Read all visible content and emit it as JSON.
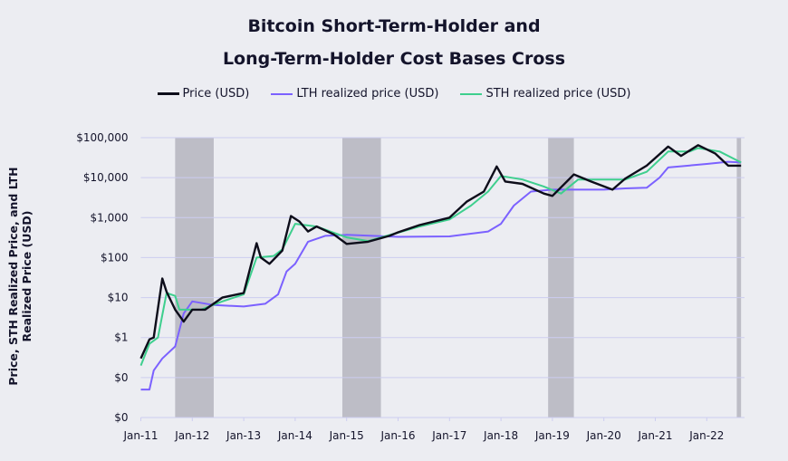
{
  "chart_data": {
    "type": "line",
    "title": "Bitcoin Short-Term-Holder and Long-Term-Holder Cost Bases Cross",
    "title_lines": [
      "Bitcoin Short-Term-Holder and",
      "Long-Term-Holder Cost Bases Cross"
    ],
    "ylabel": "Price, STH Realized Price, and LTH Realized Price (USD)",
    "xlabel": "",
    "y_scale": "log",
    "ylim": [
      0.01,
      100000
    ],
    "y_ticks": [
      {
        "value": 100000,
        "label": "$100,000"
      },
      {
        "value": 10000,
        "label": "$10,000"
      },
      {
        "value": 1000,
        "label": "$1,000"
      },
      {
        "value": 100,
        "label": "$100"
      },
      {
        "value": 10,
        "label": "$10"
      },
      {
        "value": 1,
        "label": "$1"
      },
      {
        "value": 0.1,
        "label": "$0"
      },
      {
        "value": 0.01,
        "label": "$0"
      }
    ],
    "xlim": [
      "2011-01",
      "2022-09"
    ],
    "x_ticks": [
      "Jan-11",
      "Jan-12",
      "Jan-13",
      "Jan-14",
      "Jan-15",
      "Jan-16",
      "Jan-17",
      "Jan-18",
      "Jan-19",
      "Jan-20",
      "Jan-21",
      "Jan-22"
    ],
    "grid": "horizontal",
    "legend_placement": "top",
    "shaded_periods": [
      [
        "2011-09",
        "2012-06"
      ],
      [
        "2014-12",
        "2015-09"
      ],
      [
        "2018-12",
        "2019-06"
      ],
      [
        "2022-08",
        "2022-09"
      ]
    ],
    "series": [
      {
        "name": "Price (USD)",
        "color": "#0d0d1a",
        "points": [
          [
            "2011-01",
            0.3
          ],
          [
            "2011-03",
            0.9
          ],
          [
            "2011-04",
            1
          ],
          [
            "2011-06",
            30
          ],
          [
            "2011-07",
            14
          ],
          [
            "2011-09",
            5
          ],
          [
            "2011-11",
            2.5
          ],
          [
            "2012-01",
            5
          ],
          [
            "2012-04",
            5
          ],
          [
            "2012-08",
            10
          ],
          [
            "2013-01",
            13
          ],
          [
            "2013-04",
            230
          ],
          [
            "2013-05",
            100
          ],
          [
            "2013-07",
            70
          ],
          [
            "2013-10",
            150
          ],
          [
            "2013-12",
            1100
          ],
          [
            "2014-02",
            800
          ],
          [
            "2014-04",
            450
          ],
          [
            "2014-06",
            600
          ],
          [
            "2014-10",
            380
          ],
          [
            "2015-01",
            220
          ],
          [
            "2015-06",
            250
          ],
          [
            "2015-11",
            350
          ],
          [
            "2016-01",
            430
          ],
          [
            "2016-06",
            650
          ],
          [
            "2017-01",
            1000
          ],
          [
            "2017-05",
            2500
          ],
          [
            "2017-09",
            4500
          ],
          [
            "2017-12",
            19000
          ],
          [
            "2018-02",
            8000
          ],
          [
            "2018-06",
            7000
          ],
          [
            "2018-11",
            4000
          ],
          [
            "2019-01",
            3500
          ],
          [
            "2019-06",
            12000
          ],
          [
            "2019-10",
            8000
          ],
          [
            "2020-03",
            5000
          ],
          [
            "2020-06",
            9500
          ],
          [
            "2020-11",
            20000
          ],
          [
            "2021-04",
            60000
          ],
          [
            "2021-07",
            35000
          ],
          [
            "2021-11",
            65000
          ],
          [
            "2022-03",
            40000
          ],
          [
            "2022-06",
            20000
          ],
          [
            "2022-09",
            20000
          ]
        ]
      },
      {
        "name": "LTH realized price (USD)",
        "color": "#7b61ff",
        "points": [
          [
            "2011-01",
            0.05
          ],
          [
            "2011-03",
            0.05
          ],
          [
            "2011-04",
            0.15
          ],
          [
            "2011-06",
            0.3
          ],
          [
            "2011-09",
            0.6
          ],
          [
            "2011-11",
            4
          ],
          [
            "2012-01",
            8
          ],
          [
            "2012-06",
            6.5
          ],
          [
            "2013-01",
            6
          ],
          [
            "2013-06",
            7
          ],
          [
            "2013-09",
            12
          ],
          [
            "2013-11",
            45
          ],
          [
            "2014-01",
            70
          ],
          [
            "2014-04",
            250
          ],
          [
            "2014-08",
            350
          ],
          [
            "2015-01",
            370
          ],
          [
            "2016-01",
            330
          ],
          [
            "2017-01",
            340
          ],
          [
            "2017-10",
            450
          ],
          [
            "2018-01",
            700
          ],
          [
            "2018-04",
            2000
          ],
          [
            "2018-08",
            4500
          ],
          [
            "2019-01",
            5000
          ],
          [
            "2020-01",
            5000
          ],
          [
            "2020-06",
            5400
          ],
          [
            "2020-11",
            5600
          ],
          [
            "2021-02",
            10000
          ],
          [
            "2021-04",
            18000
          ],
          [
            "2022-01",
            22000
          ],
          [
            "2022-06",
            25000
          ],
          [
            "2022-09",
            24000
          ]
        ]
      },
      {
        "name": "STH realized price (USD)",
        "color": "#3ecf8e",
        "points": [
          [
            "2011-01",
            0.2
          ],
          [
            "2011-03",
            0.7
          ],
          [
            "2011-05",
            1
          ],
          [
            "2011-07",
            13
          ],
          [
            "2011-09",
            11
          ],
          [
            "2011-10",
            5
          ],
          [
            "2012-03",
            5
          ],
          [
            "2012-08",
            8
          ],
          [
            "2013-01",
            12
          ],
          [
            "2013-04",
            100
          ],
          [
            "2013-08",
            110
          ],
          [
            "2013-10",
            160
          ],
          [
            "2014-01",
            700
          ],
          [
            "2014-06",
            600
          ],
          [
            "2015-01",
            320
          ],
          [
            "2015-06",
            260
          ],
          [
            "2016-01",
            420
          ],
          [
            "2016-06",
            600
          ],
          [
            "2017-01",
            900
          ],
          [
            "2017-06",
            2000
          ],
          [
            "2017-10",
            4500
          ],
          [
            "2018-01",
            11000
          ],
          [
            "2018-06",
            9000
          ],
          [
            "2018-11",
            6000
          ],
          [
            "2019-03",
            4000
          ],
          [
            "2019-07",
            9000
          ],
          [
            "2020-01",
            9000
          ],
          [
            "2020-06",
            9000
          ],
          [
            "2020-11",
            14000
          ],
          [
            "2021-04",
            45000
          ],
          [
            "2021-09",
            45000
          ],
          [
            "2021-11",
            55000
          ],
          [
            "2022-04",
            45000
          ],
          [
            "2022-09",
            24000
          ]
        ]
      }
    ]
  }
}
